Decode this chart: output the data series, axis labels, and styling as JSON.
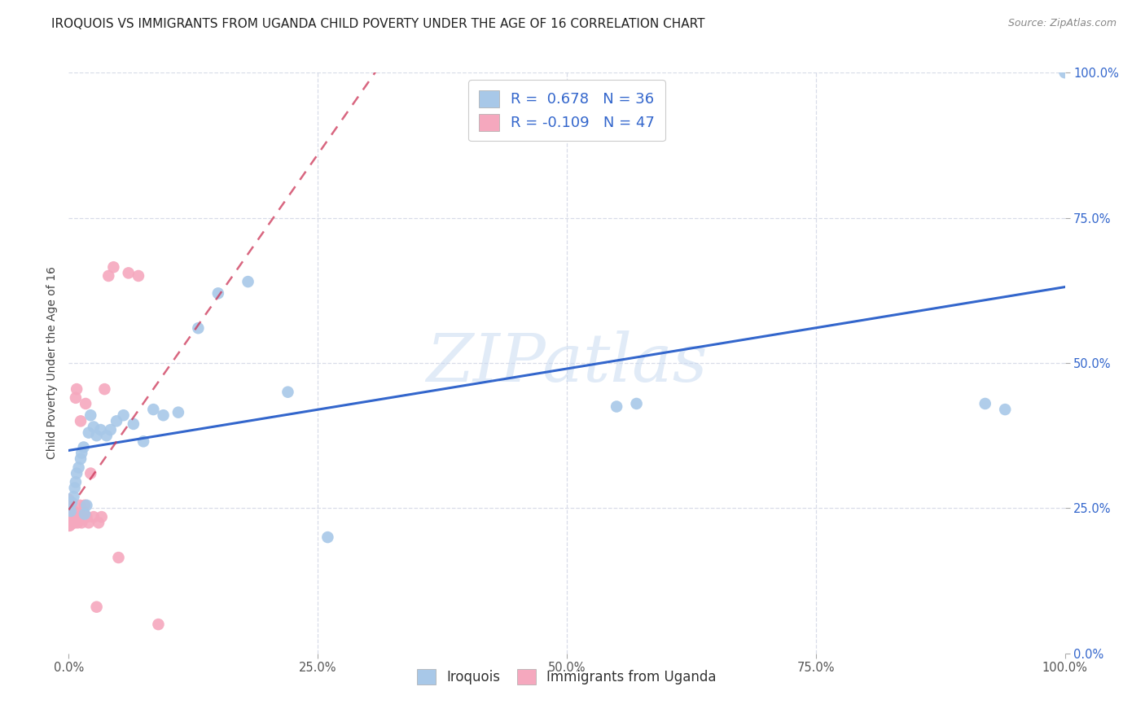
{
  "title": "IROQUOIS VS IMMIGRANTS FROM UGANDA CHILD POVERTY UNDER THE AGE OF 16 CORRELATION CHART",
  "source": "Source: ZipAtlas.com",
  "ylabel": "Child Poverty Under the Age of 16",
  "watermark": "ZIPatlas",
  "iroquois_R": 0.678,
  "iroquois_N": 36,
  "uganda_R": -0.109,
  "uganda_N": 47,
  "iroquois_color": "#a8c8e8",
  "uganda_color": "#f5a8be",
  "iroquois_line_color": "#3366cc",
  "uganda_line_color": "#cc3355",
  "iroquois_x": [
    0.002,
    0.003,
    0.005,
    0.006,
    0.007,
    0.008,
    0.01,
    0.012,
    0.013,
    0.015,
    0.016,
    0.018,
    0.02,
    0.022,
    0.025,
    0.028,
    0.032,
    0.038,
    0.042,
    0.048,
    0.055,
    0.065,
    0.075,
    0.085,
    0.095,
    0.11,
    0.13,
    0.15,
    0.18,
    0.22,
    0.26,
    0.55,
    0.57,
    0.92,
    0.94,
    1.0
  ],
  "iroquois_y": [
    0.245,
    0.26,
    0.27,
    0.285,
    0.295,
    0.31,
    0.32,
    0.335,
    0.345,
    0.355,
    0.24,
    0.255,
    0.38,
    0.41,
    0.39,
    0.375,
    0.385,
    0.375,
    0.385,
    0.4,
    0.41,
    0.395,
    0.365,
    0.42,
    0.41,
    0.415,
    0.56,
    0.62,
    0.64,
    0.45,
    0.2,
    0.425,
    0.43,
    0.43,
    0.42,
    1.0
  ],
  "uganda_x": [
    0.0,
    0.0,
    0.0,
    0.0,
    0.0,
    0.0,
    0.0,
    0.0,
    0.0,
    0.0,
    0.001,
    0.001,
    0.001,
    0.002,
    0.002,
    0.003,
    0.003,
    0.004,
    0.004,
    0.005,
    0.005,
    0.006,
    0.007,
    0.008,
    0.009,
    0.01,
    0.011,
    0.012,
    0.013,
    0.014,
    0.015,
    0.016,
    0.017,
    0.018,
    0.02,
    0.022,
    0.025,
    0.028,
    0.03,
    0.033,
    0.036,
    0.04,
    0.045,
    0.05,
    0.06,
    0.07,
    0.09
  ],
  "uganda_y": [
    0.22,
    0.225,
    0.23,
    0.235,
    0.24,
    0.245,
    0.25,
    0.255,
    0.26,
    0.265,
    0.22,
    0.23,
    0.24,
    0.225,
    0.235,
    0.225,
    0.23,
    0.225,
    0.235,
    0.225,
    0.245,
    0.225,
    0.44,
    0.455,
    0.225,
    0.235,
    0.255,
    0.4,
    0.225,
    0.235,
    0.245,
    0.255,
    0.43,
    0.235,
    0.225,
    0.31,
    0.235,
    0.08,
    0.225,
    0.235,
    0.455,
    0.65,
    0.665,
    0.165,
    0.655,
    0.65,
    0.05
  ],
  "xlim": [
    0.0,
    1.0
  ],
  "ylim": [
    0.0,
    1.0
  ],
  "xticks": [
    0.0,
    0.25,
    0.5,
    0.75,
    1.0
  ],
  "yticks": [
    0.0,
    0.25,
    0.5,
    0.75,
    1.0
  ],
  "xticklabels": [
    "0.0%",
    "25.0%",
    "50.0%",
    "75.0%",
    "100.0%"
  ],
  "right_yticklabels": [
    "0.0%",
    "25.0%",
    "50.0%",
    "75.0%",
    "100.0%"
  ],
  "grid_color": "#d8dce8",
  "background_color": "#ffffff",
  "title_fontsize": 11,
  "label_fontsize": 10,
  "tick_fontsize": 10.5
}
